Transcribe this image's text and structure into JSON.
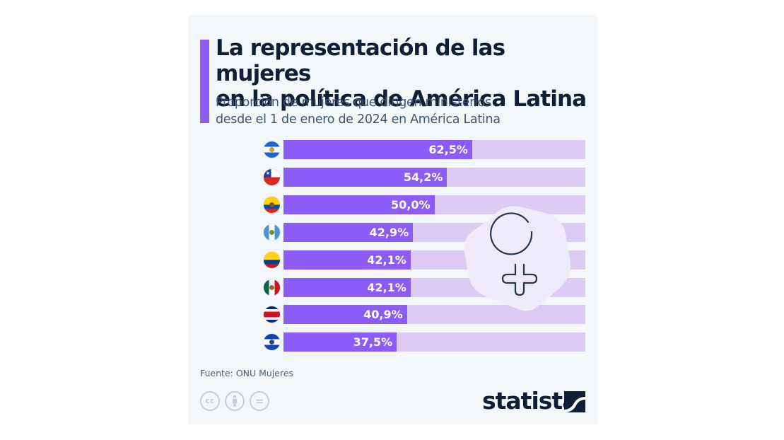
{
  "title": "La representación de las mujeres en la política de América Latina",
  "title_lines": [
    "La representación de las mujeres",
    "en la política de América Latina"
  ],
  "subtitle_lines": [
    "Proporción de mujeres que dirigen ministerios",
    "desde el 1 de enero de 2024 en América Latina"
  ],
  "colors": {
    "bar": "#8b5cf6",
    "track": "#dccbf2",
    "accent": "#8b5cf6",
    "title": "#0f1f38",
    "background": "#f4f7fa"
  },
  "chart_data": {
    "type": "bar",
    "orientation": "horizontal",
    "title": "La representación de las mujeres en la política de América Latina",
    "subtitle": "Proporción de mujeres que dirigen ministerios desde el 1 de enero de 2024 en América Latina",
    "categories": [
      "Nicaragua",
      "Chile",
      "Ecuador",
      "Guatemala",
      "Colombia",
      "México",
      "Costa Rica",
      "El Salvador"
    ],
    "values": [
      62.5,
      54.2,
      50.0,
      42.9,
      42.1,
      42.1,
      40.9,
      37.5
    ],
    "value_labels": [
      "62,5%",
      "54,2%",
      "50,0%",
      "42,9%",
      "42,1%",
      "42,1%",
      "40,9%",
      "37,5%"
    ],
    "unit": "%",
    "xlim": [
      0,
      100
    ],
    "xlabel": "",
    "ylabel": "",
    "grid": false,
    "legend": "none",
    "flags": [
      "nicaragua-flag",
      "chile-flag",
      "ecuador-flag",
      "guatemala-flag",
      "colombia-flag",
      "mexico-flag",
      "costa-rica-flag",
      "el-salvador-flag"
    ]
  },
  "decoration": {
    "icon": "female-symbol-icon"
  },
  "footer": {
    "source": "Fuente: ONU Mujeres",
    "license_icons": [
      "cc-icon",
      "attribution-icon",
      "no-derivatives-icon"
    ],
    "cc_label": "cc",
    "nd_label": "=",
    "brand": "statista"
  }
}
